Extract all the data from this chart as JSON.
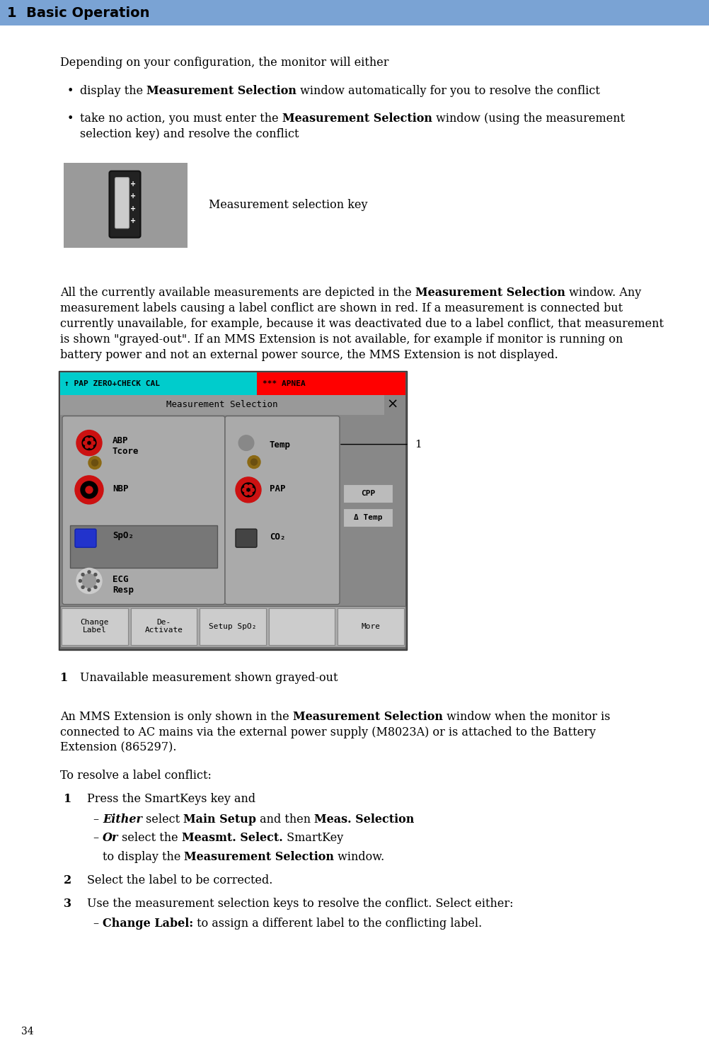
{
  "page_width": 10.03,
  "page_height": 14.76,
  "dpi": 100,
  "header_text": "1  Basic Operation",
  "header_bg_color": "#7aa3d4",
  "footer_number": "34",
  "colors": {
    "black": "#000000",
    "white": "#ffffff",
    "header_blue": "#7aa3d4",
    "teal": "#00cccc",
    "red_bright": "#ff0000",
    "screen_outer": "#888888",
    "screen_inner_bg": "#888888",
    "panel_bg": "#bbbbbb",
    "panel_light": "#cccccc",
    "dark_panel": "#999999",
    "btn_gray": "#aaaaaa",
    "btn_light": "#cccccc",
    "red_icon": "#cc1111",
    "red_icon2": "#dd2222",
    "brown_icon": "#8B6914",
    "blue_icon": "#2233cc",
    "white_icon": "#dddddd",
    "ecg_icon": "#dddddd",
    "body_text": "#000000",
    "grayed_text": "#888888"
  },
  "para1": "Depending on your configuration, the monitor will either",
  "bullet1_parts": [
    [
      "display the ",
      false
    ],
    [
      "Measurement Selection",
      true
    ],
    [
      " window automatically for you to resolve the conflict",
      false
    ]
  ],
  "bullet2_parts_line1": [
    [
      "take no action, you must enter the ",
      false
    ],
    [
      "Measurement Selection",
      true
    ],
    [
      " window (using the measurement",
      false
    ]
  ],
  "bullet2_line2": "selection key) and resolve the conflict",
  "caption_key": "Measurement selection key",
  "para2_parts_line1": [
    [
      "All the currently available measurements are depicted in the ",
      false
    ],
    [
      "Measurement Selection",
      true
    ],
    [
      " window. Any",
      false
    ]
  ],
  "para2_line2": "measurement labels causing a label conflict are shown in red. If a measurement is connected but",
  "para2_line3": "currently unavailable, for example, because it was deactivated due to a label conflict, that measurement",
  "para2_line4": "is shown \"grayed-out\". If an MMS Extension is not available, for example if monitor is running on",
  "para2_line5": "battery power and not an external power source, the MMS Extension is not displayed.",
  "note1_text": "Unavailable measurement shown grayed-out",
  "mms_line1_parts": [
    [
      "An MMS Extension is only shown in the ",
      false
    ],
    [
      "Measurement Selection",
      true
    ],
    [
      " window when the monitor is",
      false
    ]
  ],
  "mms_line2": "connected to AC mains via the external power supply (M8023A) or is attached to the Battery",
  "mms_line3": "Extension (865297).",
  "resolve_title": "To resolve a label conflict:",
  "step1_text": "Press the SmartKeys key and",
  "step1_sub1": [
    [
      "Either",
      true,
      "italic"
    ],
    [
      " select ",
      false,
      "normal"
    ],
    [
      "Main Setup",
      true,
      "normal"
    ],
    [
      " and then ",
      false,
      "normal"
    ],
    [
      "Meas. Selection",
      true,
      "normal"
    ]
  ],
  "step1_sub2": [
    [
      "Or",
      true,
      "italic"
    ],
    [
      " select the ",
      false,
      "normal"
    ],
    [
      "Measmt. Select.",
      true,
      "normal"
    ],
    [
      " SmartKey",
      false,
      "normal"
    ]
  ],
  "step1_sub3_parts": [
    [
      "to display the ",
      false,
      "normal"
    ],
    [
      "Measurement Selection",
      true,
      "normal"
    ],
    [
      " window.",
      false,
      "normal"
    ]
  ],
  "step2_text": "Select the label to be corrected.",
  "step3_text": "Use the measurement selection keys to resolve the conflict. Select either:",
  "step3_sub1": [
    [
      "Change Label:",
      true,
      "normal"
    ],
    [
      " to assign a different label to the conflicting label.",
      false,
      "normal"
    ]
  ]
}
